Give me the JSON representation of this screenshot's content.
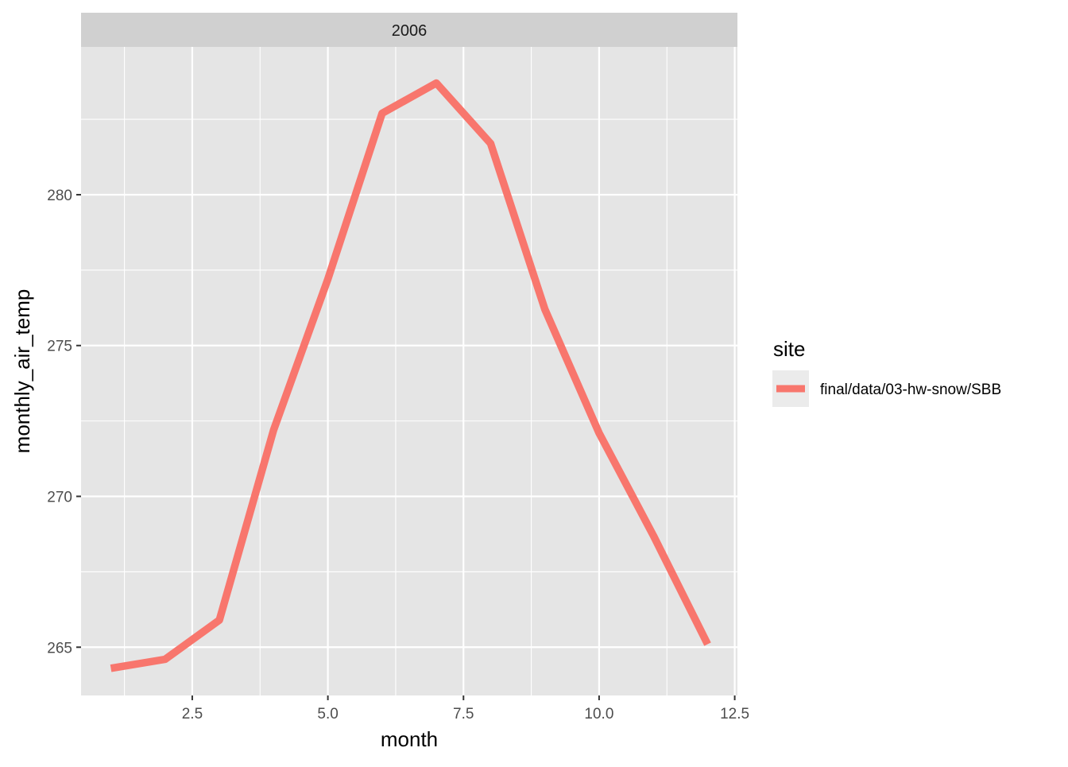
{
  "chart_data": {
    "type": "line",
    "facet_label": "2006",
    "xlabel": "month",
    "ylabel": "monthly_air_temp",
    "xlim": [
      0.45,
      12.55
    ],
    "ylim": [
      263.4,
      284.9
    ],
    "x_ticks": [
      2.5,
      5.0,
      7.5,
      10.0,
      12.5
    ],
    "x_tick_labels": [
      "2.5",
      "5.0",
      "7.5",
      "10.0",
      "12.5"
    ],
    "x_minor_ticks": [
      1.25,
      3.75,
      6.25,
      8.75,
      11.25
    ],
    "y_ticks": [
      265,
      270,
      275,
      280
    ],
    "y_tick_labels": [
      "265",
      "270",
      "275",
      "280"
    ],
    "y_minor_ticks": [
      267.5,
      272.5,
      277.5,
      282.5
    ],
    "grid": true,
    "legend": {
      "title": "site",
      "position": "right",
      "entries": [
        "final/data/03-hw-snow/SBB"
      ]
    },
    "series": [
      {
        "name": "final/data/03-hw-snow/SBB",
        "color": "#F8766D",
        "x": [
          1,
          2,
          3,
          4,
          5,
          6,
          7,
          8,
          9,
          10,
          11,
          12
        ],
        "y": [
          264.3,
          264.6,
          265.9,
          272.2,
          277.2,
          282.7,
          283.7,
          281.7,
          276.2,
          272.1,
          268.7,
          265.1
        ]
      }
    ]
  },
  "colors": {
    "panel_background": "#E5E5E5",
    "strip_background": "#D0D0D0",
    "grid": "#FFFFFF",
    "tick": "#333333",
    "legend_key_background": "#EBEBEB"
  }
}
